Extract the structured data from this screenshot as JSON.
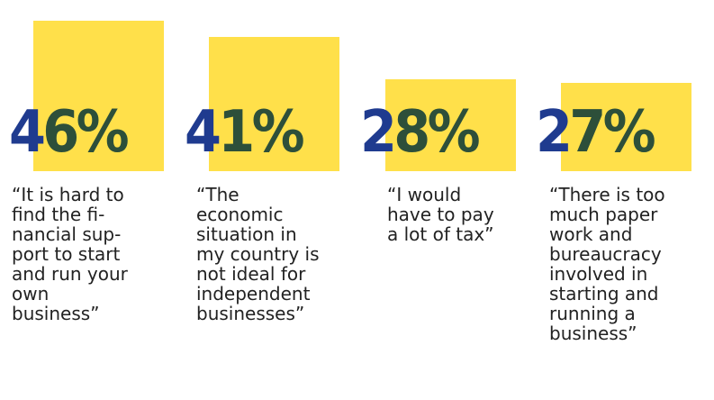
{
  "chart_data": {
    "type": "bar",
    "categories": [
      "“It is hard to find the financial support to start and run your own business”",
      "“The economic situation in my country is not ideal for independent businesses”",
      "“I would have to pay a lot of tax”",
      "“There is too much paper work and bureaucracy involved in starting and running a business”"
    ],
    "values": [
      46,
      41,
      28,
      27
    ],
    "ylim": [
      0,
      50
    ],
    "grid": false
  },
  "items": [
    {
      "value_label": "46%",
      "first_digit": "4",
      "rest": "6%",
      "quote": "“It is hard to\nfind the fi-\nnancial sup-\nport to start\nand run your\nown\nbusiness”"
    },
    {
      "value_label": "41%",
      "first_digit": "4",
      "rest": "1%",
      "quote": "“The\neconomic\nsituation in\nmy country is\nnot ideal for\nindependent\nbusinesses”"
    },
    {
      "value_label": "28%",
      "first_digit": "2",
      "rest": "8%",
      "quote": "“I would\nhave to pay\na lot of tax”"
    },
    {
      "value_label": "27%",
      "first_digit": "2",
      "rest": "7%",
      "quote": "“There is too\nmuch paper\nwork and\nbureaucracy\ninvolved in\nstarting and\nrunning a\nbusiness”"
    }
  ],
  "colors": {
    "bar": "#ffe04a",
    "first_digit": "#1f3b8f",
    "rest_digits": "#2d4f3a",
    "text": "#222222"
  }
}
